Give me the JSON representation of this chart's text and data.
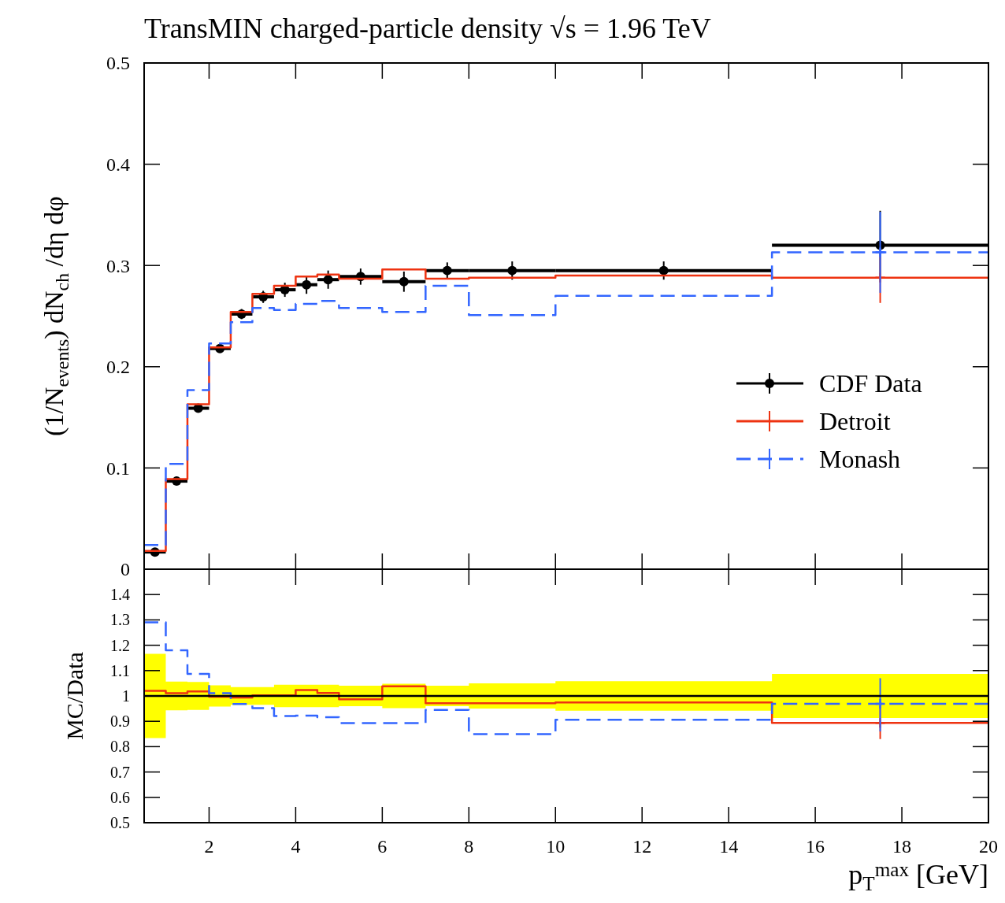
{
  "chart_data": [
    {
      "type": "step",
      "title": "TransMIN charged-particle density √s = 1.96 TeV",
      "ylabel": "(1/N$_{events}$) dN$_{ch}$ /dη dφ",
      "xlim": [
        0.5,
        20
      ],
      "xticks": [
        2,
        4,
        6,
        8,
        10,
        12,
        14,
        16,
        18,
        20
      ],
      "ylim": [
        0,
        0.5
      ],
      "yticks": [
        0,
        0.1,
        0.2,
        0.3,
        0.4,
        0.5
      ],
      "tick_labels": "y",
      "grid": false,
      "legend": "right",
      "series": [
        {
          "name": "CDF Data",
          "type": "scatter",
          "color": "#000000",
          "marker": "circle",
          "x": [
            0.75,
            1.25,
            1.75,
            2.25,
            2.75,
            3.25,
            3.75,
            4.25,
            4.75,
            5.5,
            6.5,
            7.5,
            9,
            12.5,
            17.5
          ],
          "values": [
            0.017,
            0.087,
            0.159,
            0.218,
            0.252,
            0.269,
            0.276,
            0.281,
            0.286,
            0.289,
            0.284,
            0.295,
            0.295,
            0.295,
            0.32
          ],
          "errors": [
            0.002,
            0.002,
            0.003,
            0.004,
            0.005,
            0.006,
            0.007,
            0.009,
            0.009,
            0.008,
            0.01,
            0.008,
            0.009,
            0.009,
            0.034
          ],
          "xerrors": [
            0.25,
            0.25,
            0.25,
            0.25,
            0.25,
            0.25,
            0.25,
            0.25,
            0.25,
            0.5,
            0.5,
            0.5,
            1,
            2.5,
            2.5
          ]
        },
        {
          "name": "Detroit",
          "color": "#ee3311",
          "marker": "none",
          "line_style": "solid",
          "x": [
            0.5,
            1,
            1.5,
            2,
            2.5,
            3,
            3.5,
            4,
            4.5,
            5,
            6,
            7,
            8,
            10,
            15,
            20
          ],
          "values": [
            0.018,
            0.089,
            0.163,
            0.219,
            0.254,
            0.272,
            0.28,
            0.289,
            0.291,
            0.287,
            0.296,
            0.287,
            0.288,
            0.29,
            0.288,
            0.288
          ]
        },
        {
          "name": "Monash",
          "color": "#3366ff",
          "marker": "none",
          "line_style": "dashed",
          "x": [
            0.5,
            1,
            1.5,
            2,
            2.5,
            3,
            3.5,
            4,
            4.5,
            5,
            6,
            7,
            8,
            10,
            15,
            20
          ],
          "values": [
            0.024,
            0.104,
            0.177,
            0.223,
            0.244,
            0.258,
            0.256,
            0.262,
            0.265,
            0.258,
            0.254,
            0.28,
            0.251,
            0.27,
            0.313,
            0.313
          ]
        },
        {
          "type": "scatter",
          "color": "#ee3311",
          "marker": "cross",
          "x": [
            17.5
          ],
          "values": [
            0.288
          ],
          "errors": [
            0.025
          ]
        },
        {
          "type": "scatter",
          "color": "#3366ff",
          "marker": "cross",
          "x": [
            17.5
          ],
          "values": [
            0.313
          ],
          "errors": [
            0.04
          ]
        }
      ]
    },
    {
      "type": "step",
      "ylabel": "MC/Data",
      "xlabel": "p$_{T}$$^{max}$ [GeV]",
      "xlim": [
        0.5,
        20
      ],
      "xticks": [
        2,
        4,
        6,
        8,
        10,
        12,
        14,
        16,
        18,
        20
      ],
      "ylim": [
        0.5,
        1.5
      ],
      "yticks": [
        0.5,
        0.6,
        0.7,
        0.8,
        0.9,
        1,
        1.1,
        1.2,
        1.3,
        1.4
      ],
      "grid": false,
      "ref_lines": [
        {
          "axis": "y",
          "value": 1,
          "color": "#000000"
        }
      ],
      "series": [
        {
          "color": "#ffff00",
          "x": [
            0.5,
            1,
            1.5,
            2,
            2.5,
            3,
            3.5,
            4,
            4.5,
            5,
            6,
            7,
            8,
            10,
            15,
            20
          ],
          "values": [
            null,
            null,
            null,
            null,
            null,
            null,
            null,
            null,
            null,
            null,
            null,
            null,
            null,
            null,
            null,
            null
          ],
          "lower": [
            0.834,
            0.943,
            0.945,
            0.958,
            0.965,
            0.965,
            0.956,
            0.956,
            0.956,
            0.96,
            0.952,
            0.96,
            0.95,
            0.942,
            0.913,
            0.913
          ],
          "upper": [
            1.166,
            1.057,
            1.055,
            1.042,
            1.035,
            1.035,
            1.044,
            1.044,
            1.044,
            1.04,
            1.048,
            1.04,
            1.05,
            1.058,
            1.087,
            1.087
          ]
        },
        {
          "color": "#ee3311",
          "line_style": "solid",
          "x": [
            0.5,
            1,
            1.5,
            2,
            2.5,
            3,
            3.5,
            4,
            4.5,
            5,
            6,
            7,
            8,
            10,
            15,
            20
          ],
          "values": [
            1.02,
            1.011,
            1.018,
            0.997,
            0.994,
            1.002,
            1.002,
            1.023,
            1.012,
            0.987,
            1.038,
            0.971,
            0.971,
            0.974,
            0.894,
            0.894
          ]
        },
        {
          "color": "#3366ff",
          "line_style": "dashed",
          "x": [
            0.5,
            1,
            1.5,
            2,
            2.5,
            3,
            3.5,
            4,
            4.5,
            5,
            6,
            7,
            8,
            10,
            15,
            20
          ],
          "values": [
            1.29,
            1.18,
            1.087,
            1.011,
            0.968,
            0.952,
            0.921,
            0.922,
            0.916,
            0.893,
            0.893,
            0.945,
            0.849,
            0.906,
            0.969,
            0.969
          ]
        },
        {
          "type": "scatter",
          "color": "#ee3311",
          "marker": "cross",
          "x": [
            17.5
          ],
          "values": [
            0.894
          ],
          "errors": [
            [
              0.83,
              0.96
            ]
          ]
        },
        {
          "type": "scatter",
          "color": "#3366ff",
          "marker": "cross",
          "x": [
            17.5
          ],
          "values": [
            0.969
          ],
          "errors": [
            [
              0.86,
              1.07
            ]
          ]
        }
      ]
    }
  ]
}
